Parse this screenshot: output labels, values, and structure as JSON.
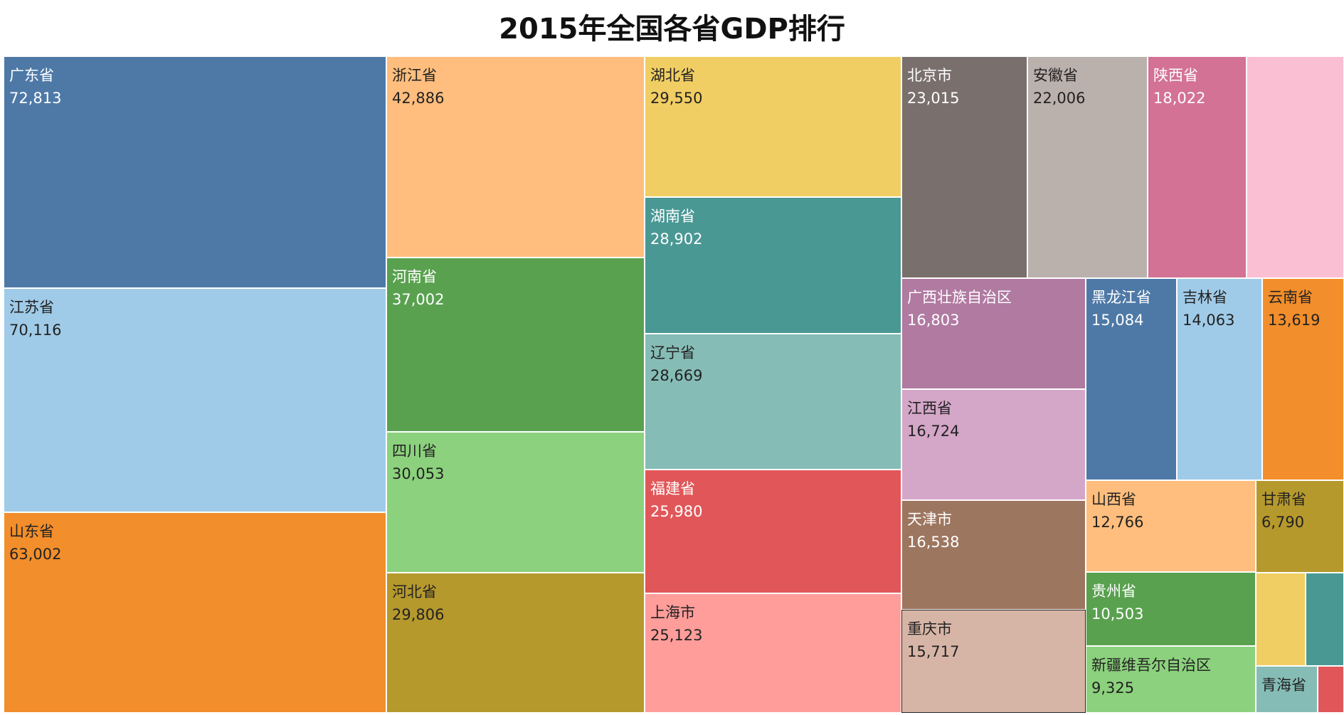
{
  "chart_data": {
    "type": "treemap",
    "title": "2015年全国各省GDP排行",
    "items": [
      {
        "name": "广东省",
        "value": 72813,
        "color": "#4e79a7",
        "label_color": "#ffffff"
      },
      {
        "name": "江苏省",
        "value": 70116,
        "color": "#a0cbe8",
        "label_color": "#222222"
      },
      {
        "name": "山东省",
        "value": 63002,
        "color": "#f28e2b",
        "label_color": "#222222"
      },
      {
        "name": "浙江省",
        "value": 42886,
        "color": "#ffbe7d",
        "label_color": "#222222"
      },
      {
        "name": "河南省",
        "value": 37002,
        "color": "#59a14f",
        "label_color": "#ffffff"
      },
      {
        "name": "四川省",
        "value": 30053,
        "color": "#8cd17d",
        "label_color": "#222222"
      },
      {
        "name": "河北省",
        "value": 29806,
        "color": "#b6992d",
        "label_color": "#222222"
      },
      {
        "name": "湖北省",
        "value": 29550,
        "color": "#f1ce63",
        "label_color": "#222222"
      },
      {
        "name": "湖南省",
        "value": 28902,
        "color": "#499894",
        "label_color": "#ffffff"
      },
      {
        "name": "辽宁省",
        "value": 28669,
        "color": "#86bcb6",
        "label_color": "#222222"
      },
      {
        "name": "福建省",
        "value": 25980,
        "color": "#e15759",
        "label_color": "#ffffff"
      },
      {
        "name": "上海市",
        "value": 25123,
        "color": "#ff9d9a",
        "label_color": "#222222"
      },
      {
        "name": "北京市",
        "value": 23015,
        "color": "#79706e",
        "label_color": "#ffffff"
      },
      {
        "name": "安徽省",
        "value": 22006,
        "color": "#bab0ac",
        "label_color": "#222222"
      },
      {
        "name": "陕西省",
        "value": 18022,
        "color": "#d37295",
        "label_color": "#ffffff"
      },
      {
        "name": "",
        "value": null,
        "color": "#fabfd2",
        "label_color": "#222222"
      },
      {
        "name": "广西壮族自治区",
        "value": 16803,
        "color": "#b07aa1",
        "label_color": "#ffffff"
      },
      {
        "name": "江西省",
        "value": 16724,
        "color": "#d4a6c8",
        "label_color": "#222222"
      },
      {
        "name": "天津市",
        "value": 16538,
        "color": "#9d7660",
        "label_color": "#ffffff"
      },
      {
        "name": "重庆市",
        "value": 15717,
        "color": "#d7b5a6",
        "label_color": "#222222",
        "outlined": true
      },
      {
        "name": "黑龙江省",
        "value": 15084,
        "color": "#4e79a7",
        "label_color": "#ffffff"
      },
      {
        "name": "吉林省",
        "value": 14063,
        "color": "#a0cbe8",
        "label_color": "#222222"
      },
      {
        "name": "云南省",
        "value": 13619,
        "color": "#f28e2b",
        "label_color": "#222222"
      },
      {
        "name": "山西省",
        "value": 12766,
        "color": "#ffbe7d",
        "label_color": "#222222"
      },
      {
        "name": "甘肃省",
        "value": 6790,
        "color": "#b6992d",
        "label_color": "#222222"
      },
      {
        "name": "贵州省",
        "value": 10503,
        "color": "#59a14f",
        "label_color": "#ffffff"
      },
      {
        "name": "新疆维吾尔自治区",
        "value": 9325,
        "color": "#8cd17d",
        "label_color": "#222222"
      },
      {
        "name": "",
        "value": null,
        "color": "#f1ce63",
        "label_color": "#222222"
      },
      {
        "name": "",
        "value": null,
        "color": "#499894",
        "label_color": "#ffffff"
      },
      {
        "name": "青海省",
        "value": null,
        "color": "#86bcb6",
        "label_color": "#222222"
      },
      {
        "name": "",
        "value": null,
        "color": "#e15759",
        "label_color": "#ffffff"
      }
    ]
  }
}
